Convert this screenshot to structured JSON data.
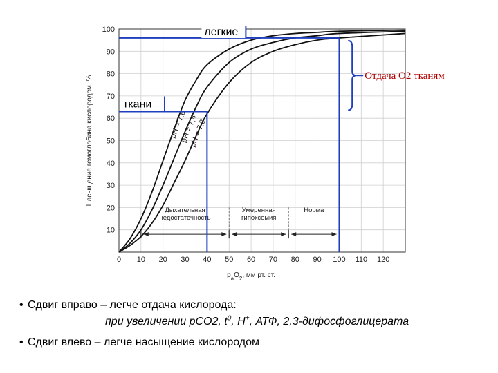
{
  "chart_data": {
    "type": "line",
    "ylabel": "Насыщение гемоглобина кислородом, %",
    "xlabel_parts": [
      "p",
      "a",
      "O",
      "2",
      ", мм рт. ст."
    ],
    "xlim": [
      0,
      130
    ],
    "ylim": [
      0,
      100
    ],
    "x_ticks": [
      0,
      10,
      20,
      30,
      40,
      50,
      60,
      70,
      80,
      90,
      100,
      110,
      120
    ],
    "y_ticks": [
      10,
      20,
      30,
      40,
      50,
      60,
      70,
      80,
      90,
      100
    ],
    "grid": true,
    "series": [
      {
        "name": "pH = 7,6",
        "x": [
          0,
          5,
          10,
          15,
          20,
          25,
          30,
          35,
          40,
          50,
          60,
          70,
          80,
          90,
          100,
          130
        ],
        "y": [
          0,
          6,
          15,
          27,
          41,
          55,
          68,
          77,
          84,
          91,
          95,
          97,
          98,
          98.5,
          99,
          99.5
        ]
      },
      {
        "name": "pH = 7,4",
        "x": [
          0,
          5,
          10,
          15,
          20,
          25,
          30,
          35,
          40,
          50,
          60,
          70,
          80,
          90,
          100,
          130
        ],
        "y": [
          0,
          4,
          10,
          19,
          30,
          42,
          54,
          65,
          74,
          85,
          91,
          94,
          96,
          97,
          98,
          99
        ]
      },
      {
        "name": "pH = 7,2",
        "x": [
          0,
          5,
          10,
          15,
          20,
          25,
          30,
          35,
          40,
          50,
          60,
          70,
          80,
          90,
          100,
          130
        ],
        "y": [
          0,
          3,
          7,
          13,
          21,
          31,
          41,
          52,
          62,
          76,
          85,
          90,
          93,
          95,
          96,
          98
        ]
      }
    ],
    "zones": [
      {
        "label_lines": [
          "Дыхательная",
          "недостаточность"
        ],
        "x_from": 10,
        "x_to": 50
      },
      {
        "label_lines": [
          "Умеренная",
          "гипоксемия"
        ],
        "x_from": 50,
        "x_to": 77
      },
      {
        "label_lines": [
          "Норма"
        ],
        "x_from": 77,
        "x_to": 100
      }
    ],
    "annotations": {
      "lungs": {
        "label": "легкие",
        "x": 100,
        "y": 96
      },
      "tissues": {
        "label": "ткани",
        "x": 40,
        "y": 63
      },
      "release": {
        "label": "Отдача О2 тканям"
      }
    }
  },
  "text": {
    "bullet1": "Сдвиг вправо – легче отдача кислорода:",
    "sub_prefix": "при увеличении pCO2, t",
    "sub_sup1": "0",
    "sub_mid": ", H",
    "sub_sup2": "+",
    "sub_suffix": ", АТФ, 2,3-дифосфоглицерата",
    "bullet2": "Сдвиг влево – легче насыщение кислородом"
  }
}
